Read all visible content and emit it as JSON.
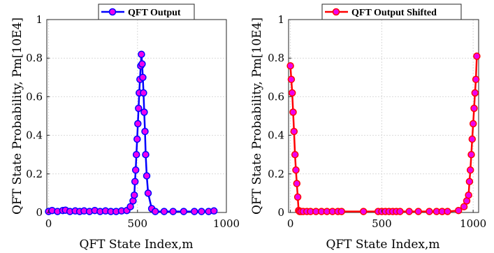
{
  "chart_data": [
    {
      "type": "line",
      "title": "",
      "xlabel": "QFT State Index,m",
      "ylabel": "QFT State Probability, Pm[10E4]",
      "xlim": [
        -10,
        1000
      ],
      "ylim": [
        0,
        1
      ],
      "xticks": [
        "0",
        "500",
        "1000"
      ],
      "xtick_values": [
        0,
        500,
        1000
      ],
      "yticks": [
        "0",
        "0.2",
        "0.4",
        "0.6",
        "0.8",
        "1"
      ],
      "ytick_values": [
        0,
        0.2,
        0.4,
        0.6,
        0.8,
        1
      ],
      "grid": true,
      "legend_position": "top",
      "series": [
        {
          "name": "QFT Output",
          "line_color": "#0000ff",
          "marker_face": "#ee00ee",
          "marker_edge": "#0000ff",
          "x": [
            0,
            20,
            50,
            80,
            95,
            120,
            150,
            175,
            200,
            230,
            260,
            290,
            320,
            350,
            380,
            410,
            440,
            460,
            475,
            482,
            486,
            490,
            494,
            498,
            502,
            506,
            510,
            514,
            518,
            522,
            526,
            530,
            534,
            538,
            542,
            546,
            552,
            560,
            580,
            600,
            650,
            700,
            760,
            820,
            860,
            900,
            930
          ],
          "y": [
            0.005,
            0.01,
            0.005,
            0.01,
            0.012,
            0.005,
            0.008,
            0.005,
            0.008,
            0.005,
            0.01,
            0.005,
            0.008,
            0.005,
            0.005,
            0.008,
            0.01,
            0.03,
            0.06,
            0.09,
            0.16,
            0.22,
            0.3,
            0.38,
            0.46,
            0.54,
            0.62,
            0.69,
            0.76,
            0.82,
            0.77,
            0.7,
            0.62,
            0.52,
            0.42,
            0.3,
            0.19,
            0.1,
            0.02,
            0.005,
            0.005,
            0.005,
            0.005,
            0.005,
            0.005,
            0.005,
            0.008
          ]
        }
      ]
    },
    {
      "type": "line",
      "title": "",
      "xlabel": "QFT State Index,m",
      "ylabel": "QFT State Probability, Pm[10E4]",
      "xlim": [
        -10,
        1030
      ],
      "ylim": [
        0,
        1
      ],
      "xticks": [
        "0",
        "500",
        "1000"
      ],
      "xtick_values": [
        0,
        500,
        1000
      ],
      "yticks": [
        "0",
        "0.2",
        "0.4",
        "0.6",
        "0.8",
        "1"
      ],
      "ytick_values": [
        0,
        0.2,
        0.4,
        0.6,
        0.8,
        1
      ],
      "grid": true,
      "legend_position": "top",
      "series": [
        {
          "name": "QFT Output Shifted",
          "line_color": "#ff0000",
          "marker_face": "#ee00ee",
          "marker_edge": "#ff0000",
          "x": [
            0,
            5,
            10,
            15,
            20,
            25,
            30,
            35,
            40,
            45,
            50,
            58,
            70,
            90,
            110,
            140,
            170,
            200,
            230,
            260,
            280,
            400,
            480,
            500,
            520,
            540,
            560,
            580,
            600,
            650,
            700,
            760,
            800,
            830,
            860,
            920,
            950,
            965,
            975,
            980,
            985,
            990,
            995,
            1000,
            1005,
            1010,
            1015,
            1020
          ],
          "y": [
            0.76,
            0.69,
            0.62,
            0.52,
            0.42,
            0.3,
            0.22,
            0.15,
            0.08,
            0.01,
            0.005,
            0.005,
            0.005,
            0.005,
            0.005,
            0.005,
            0.005,
            0.005,
            0.005,
            0.005,
            0.005,
            0.005,
            0.005,
            0.005,
            0.005,
            0.005,
            0.005,
            0.005,
            0.005,
            0.005,
            0.005,
            0.005,
            0.005,
            0.005,
            0.005,
            0.01,
            0.03,
            0.06,
            0.09,
            0.16,
            0.22,
            0.3,
            0.38,
            0.46,
            0.54,
            0.62,
            0.69,
            0.81
          ]
        }
      ]
    }
  ]
}
